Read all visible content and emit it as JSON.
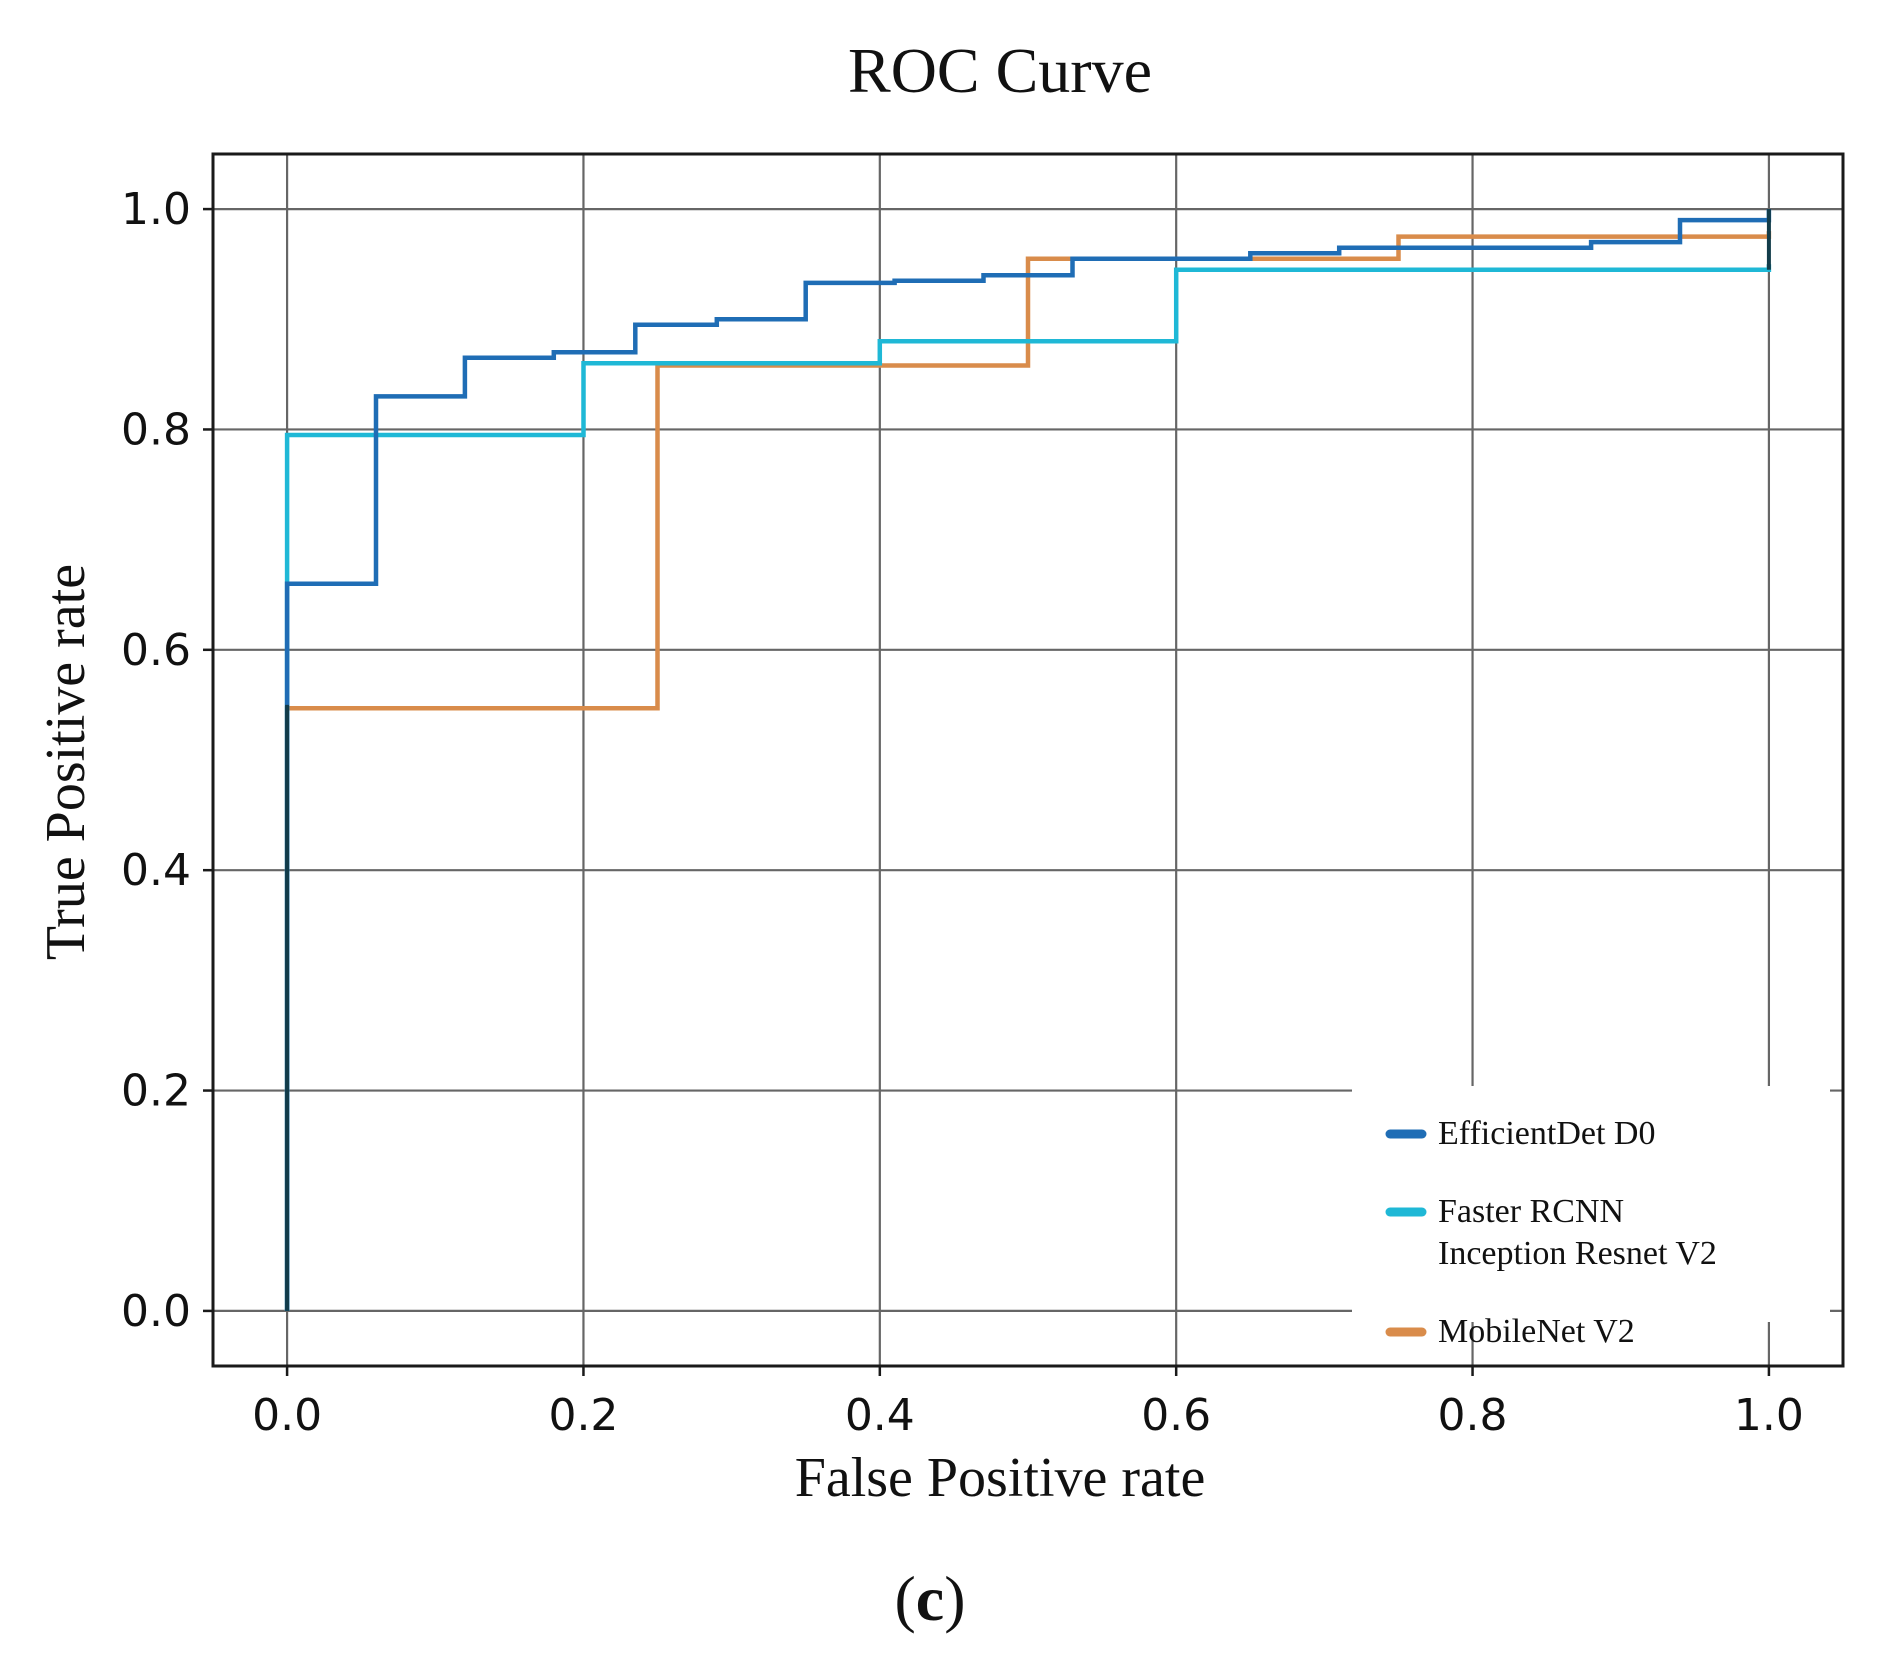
{
  "chart_data": {
    "type": "line",
    "title": "ROC Curve",
    "xlabel": "False Positive rate",
    "ylabel": "True Positive rate",
    "xlim": [
      -0.05,
      1.05
    ],
    "ylim": [
      -0.05,
      1.05
    ],
    "xticks": [
      "0.0",
      "0.2",
      "0.4",
      "0.6",
      "0.8",
      "1.0"
    ],
    "yticks": [
      "0.0",
      "0.2",
      "0.4",
      "0.6",
      "0.8",
      "1.0"
    ],
    "grid": true,
    "legend_position": "bottom-right",
    "step": "post",
    "series": [
      {
        "name": "EfficientDet D0",
        "color": "#1f6db5",
        "x": [
          0.0,
          0.0,
          0.06,
          0.06,
          0.12,
          0.12,
          0.18,
          0.18,
          0.235,
          0.235,
          0.29,
          0.29,
          0.35,
          0.35,
          0.41,
          0.41,
          0.47,
          0.47,
          0.53,
          0.53,
          0.65,
          0.65,
          0.71,
          0.71,
          0.88,
          0.88,
          0.94,
          0.94,
          1.0,
          1.0
        ],
        "y": [
          0.0,
          0.66,
          0.66,
          0.83,
          0.83,
          0.865,
          0.865,
          0.87,
          0.87,
          0.895,
          0.895,
          0.9,
          0.9,
          0.933,
          0.933,
          0.935,
          0.935,
          0.94,
          0.94,
          0.955,
          0.955,
          0.96,
          0.96,
          0.965,
          0.965,
          0.97,
          0.97,
          0.99,
          0.99,
          1.0
        ]
      },
      {
        "name": "Faster RCNN Inception Resnet V2",
        "color": "#1fb8d6",
        "x": [
          0.0,
          0.0,
          0.2,
          0.2,
          0.4,
          0.4,
          0.6,
          0.6,
          1.0,
          1.0
        ],
        "y": [
          0.0,
          0.795,
          0.795,
          0.86,
          0.86,
          0.88,
          0.88,
          0.945,
          0.945,
          0.95
        ]
      },
      {
        "name": "MobileNet V2",
        "color": "#d98c4b",
        "x": [
          0.0,
          0.0,
          0.25,
          0.25,
          0.5,
          0.5,
          0.75,
          0.75,
          1.0,
          1.0
        ],
        "y": [
          0.0,
          0.547,
          0.547,
          0.858,
          0.858,
          0.955,
          0.955,
          0.975,
          0.975,
          0.98
        ]
      }
    ],
    "legend": {
      "items": [
        {
          "lines": [
            "EfficientDet D0"
          ],
          "color": "#1f6db5"
        },
        {
          "lines": [
            "Faster RCNN",
            "Inception Resnet V2"
          ],
          "color": "#1fb8d6"
        },
        {
          "lines": [
            "MobileNet V2"
          ],
          "color": "#d98c4b"
        }
      ]
    }
  },
  "caption": {
    "open": "(",
    "letter": "c",
    "close": ")"
  }
}
